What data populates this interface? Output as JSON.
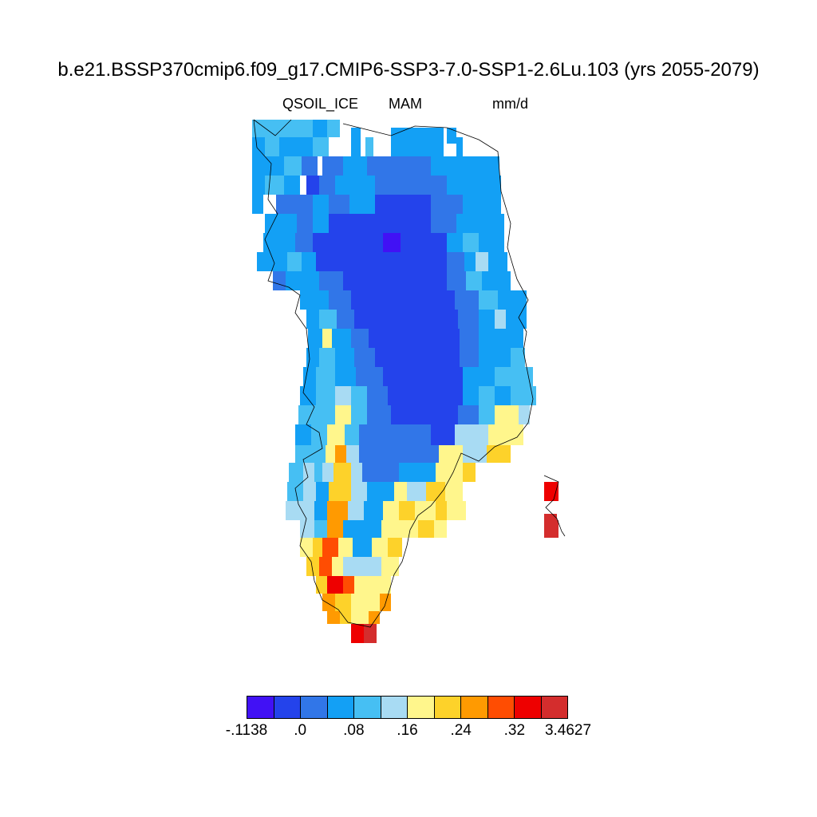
{
  "title": "b.e21.BSSP370cmip6.f09_g17.CMIP6-SSP3-7.0-SSP1-2.6Lu.103 (yrs 2055-2079)",
  "variable": "QSOIL_ICE",
  "season": "MAM",
  "units": "mm/d",
  "colorbar": {
    "colors": [
      "#4111f5",
      "#2443eb",
      "#3176e8",
      "#13a0f5",
      "#46bff3",
      "#a8dbf3",
      "#fff68c",
      "#fdd22a",
      "#ff9a01",
      "#ff4d02",
      "#ee0000",
      "#d42d2d"
    ],
    "labels": [
      "-.1138",
      ".0",
      ".08",
      ".16",
      ".24",
      ".32",
      "3.4627"
    ]
  },
  "map_colors": {
    "land_outline": "#000000",
    "dominant_interior": "#2443eb",
    "coastal_south_warm": "#fdd22a"
  }
}
